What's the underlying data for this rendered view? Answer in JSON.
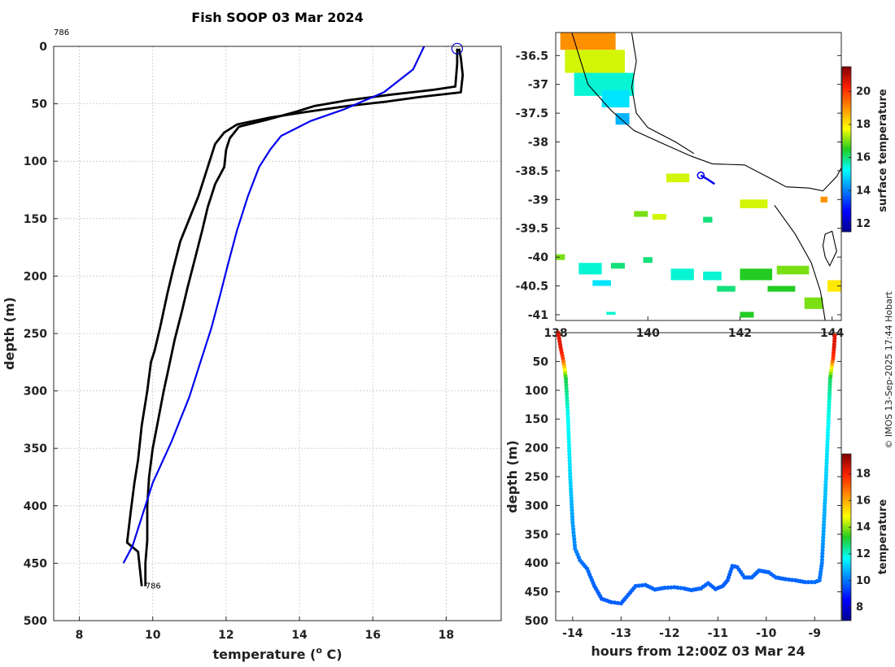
{
  "copyright": "© IMOS 13-Sep-2025 17:44 Hobart",
  "chart_data": [
    {
      "type": "line",
      "name": "temperature-depth-profile",
      "title": "Fish SOOP 03 Mar 2024",
      "xlabel_prefix": "temperature (",
      "xlabel_sup": "o",
      "xlabel_suffix": " C)",
      "ylabel": "depth (m)",
      "xlim": [
        7.3,
        19.5
      ],
      "ylim": [
        500,
        0
      ],
      "xticks": [
        8,
        10,
        12,
        14,
        16,
        18
      ],
      "yticks": [
        0,
        50,
        100,
        150,
        200,
        250,
        300,
        350,
        400,
        450,
        500
      ],
      "grid": true,
      "annotations": [
        {
          "text": "786",
          "x": 7.3,
          "y": -10
        },
        {
          "text": "786",
          "x": 9.8,
          "y": 470
        }
      ],
      "surface_marker": {
        "x": 18.3,
        "y": 2
      },
      "series": [
        {
          "name": "profile-down",
          "color": "#000000",
          "points": [
            [
              18.3,
              2
            ],
            [
              18.3,
              15
            ],
            [
              18.25,
              35
            ],
            [
              17.6,
              38
            ],
            [
              16.5,
              42
            ],
            [
              15.3,
              47
            ],
            [
              14.4,
              52
            ],
            [
              13.9,
              57
            ],
            [
              13.1,
              64
            ],
            [
              12.35,
              70
            ],
            [
              12.1,
              80
            ],
            [
              12.0,
              90
            ],
            [
              11.95,
              105
            ],
            [
              11.7,
              120
            ],
            [
              11.5,
              140
            ],
            [
              11.35,
              160
            ],
            [
              11.15,
              185
            ],
            [
              10.95,
              210
            ],
            [
              10.8,
              230
            ],
            [
              10.6,
              255
            ],
            [
              10.5,
              270
            ],
            [
              10.4,
              285
            ],
            [
              10.3,
              300
            ],
            [
              10.15,
              325
            ],
            [
              10.0,
              350
            ],
            [
              9.9,
              375
            ],
            [
              9.85,
              400
            ],
            [
              9.85,
              430
            ],
            [
              9.8,
              450
            ],
            [
              9.8,
              470
            ]
          ]
        },
        {
          "name": "profile-up",
          "color": "#000000",
          "points": [
            [
              9.7,
              470
            ],
            [
              9.6,
              440
            ],
            [
              9.3,
              432
            ],
            [
              9.4,
              405
            ],
            [
              9.5,
              380
            ],
            [
              9.6,
              360
            ],
            [
              9.7,
              330
            ],
            [
              9.85,
              300
            ],
            [
              9.95,
              275
            ],
            [
              10.05,
              265
            ],
            [
              10.2,
              245
            ],
            [
              10.4,
              215
            ],
            [
              10.55,
              195
            ],
            [
              10.75,
              170
            ],
            [
              11.0,
              150
            ],
            [
              11.25,
              130
            ],
            [
              11.45,
              110
            ],
            [
              11.6,
              95
            ],
            [
              11.7,
              85
            ],
            [
              11.95,
              75
            ],
            [
              12.3,
              68
            ],
            [
              13.2,
              62
            ],
            [
              14.2,
              57
            ],
            [
              15.3,
              52
            ],
            [
              16.4,
              48
            ],
            [
              17.3,
              44
            ],
            [
              18.4,
              40
            ],
            [
              18.45,
              25
            ],
            [
              18.4,
              10
            ],
            [
              18.35,
              2
            ]
          ]
        },
        {
          "name": "climatology",
          "color": "#0000ee",
          "points": [
            [
              17.4,
              0
            ],
            [
              17.1,
              20
            ],
            [
              16.3,
              40
            ],
            [
              15.2,
              55
            ],
            [
              14.3,
              65
            ],
            [
              13.5,
              78
            ],
            [
              13.2,
              90
            ],
            [
              12.9,
              105
            ],
            [
              12.6,
              130
            ],
            [
              12.3,
              160
            ],
            [
              12.05,
              190
            ],
            [
              11.85,
              215
            ],
            [
              11.6,
              245
            ],
            [
              11.3,
              275
            ],
            [
              11.0,
              305
            ],
            [
              10.5,
              345
            ],
            [
              10.0,
              380
            ],
            [
              9.7,
              410
            ],
            [
              9.45,
              435
            ],
            [
              9.2,
              450
            ]
          ]
        }
      ]
    },
    {
      "type": "heatmap",
      "name": "surface-temperature-map",
      "xlim": [
        138,
        144.2
      ],
      "ylim": [
        -41.1,
        -36.1
      ],
      "xticks": [
        138,
        140,
        142,
        144
      ],
      "xtick_labels": [
        "138",
        "140",
        "142",
        "144"
      ],
      "yticks": [
        -36.5,
        -37,
        -37.5,
        -38,
        -38.5,
        -39,
        -39.5,
        -40,
        -40.5,
        -41
      ],
      "ytick_labels": [
        "-36.5",
        "-37",
        "-37.5",
        "-38",
        "-38.5",
        "-39",
        "-39.5",
        "-40",
        "-40.5",
        "-41"
      ],
      "colorbar_label": "surface temperature",
      "colorbar_range": [
        11.5,
        21.5
      ],
      "colorbar_ticks": [
        12,
        14,
        16,
        18,
        20
      ],
      "vessel_position": {
        "lon": 141.15,
        "lat": -38.58
      },
      "vessel_track": [
        [
          141.15,
          -38.58
        ],
        [
          141.3,
          -38.65
        ],
        [
          141.45,
          -38.73
        ]
      ],
      "coastline": [
        [
          138.35,
          -36.1
        ],
        [
          138.7,
          -37.0
        ],
        [
          139.2,
          -37.45
        ],
        [
          139.7,
          -37.8
        ],
        [
          140.3,
          -38.02
        ],
        [
          140.95,
          -38.25
        ],
        [
          141.4,
          -38.38
        ],
        [
          142.1,
          -38.4
        ],
        [
          142.7,
          -38.65
        ],
        [
          143.0,
          -38.78
        ],
        [
          143.5,
          -38.8
        ],
        [
          143.8,
          -38.85
        ],
        [
          144.1,
          -38.6
        ],
        [
          144.2,
          -38.45
        ]
      ],
      "coastline2": [
        [
          139.65,
          -36.1
        ],
        [
          139.75,
          -36.6
        ],
        [
          139.65,
          -37.05
        ],
        [
          139.75,
          -37.5
        ],
        [
          140.0,
          -37.75
        ],
        [
          140.6,
          -38.0
        ],
        [
          141.0,
          -38.2
        ]
      ],
      "island": [
        [
          143.85,
          -39.6
        ],
        [
          144.0,
          -39.55
        ],
        [
          144.1,
          -39.9
        ],
        [
          143.95,
          -40.15
        ],
        [
          143.85,
          -40.0
        ],
        [
          143.8,
          -39.8
        ],
        [
          143.85,
          -39.6
        ]
      ],
      "island2": [
        [
          142.75,
          -39.1
        ],
        [
          143.2,
          -39.6
        ],
        [
          143.55,
          -40.1
        ],
        [
          143.75,
          -40.6
        ],
        [
          143.85,
          -41.1
        ]
      ],
      "patches": [
        {
          "lon": 138.1,
          "lat": -36.1,
          "w": 1.2,
          "h": 0.3,
          "value": 19
        },
        {
          "lon": 138.2,
          "lat": -36.4,
          "w": 1.3,
          "h": 0.4,
          "value": 17.5
        },
        {
          "lon": 138.4,
          "lat": -36.8,
          "w": 1.3,
          "h": 0.4,
          "value": 15.5
        },
        {
          "lon": 139.0,
          "lat": -37.1,
          "w": 0.6,
          "h": 0.3,
          "value": 15
        },
        {
          "lon": 139.3,
          "lat": -37.5,
          "w": 0.3,
          "h": 0.2,
          "value": 14.5
        },
        {
          "lon": 140.4,
          "lat": -38.55,
          "w": 0.5,
          "h": 0.15,
          "value": 17.5
        },
        {
          "lon": 142.0,
          "lat": -39.0,
          "w": 0.6,
          "h": 0.15,
          "value": 17.5
        },
        {
          "lon": 143.75,
          "lat": -38.95,
          "w": 0.15,
          "h": 0.1,
          "value": 19
        },
        {
          "lon": 139.7,
          "lat": -39.2,
          "w": 0.3,
          "h": 0.1,
          "value": 17
        },
        {
          "lon": 140.1,
          "lat": -39.25,
          "w": 0.3,
          "h": 0.1,
          "value": 17.5
        },
        {
          "lon": 141.2,
          "lat": -39.3,
          "w": 0.2,
          "h": 0.1,
          "value": 16
        },
        {
          "lon": 138.0,
          "lat": -39.95,
          "w": 0.2,
          "h": 0.1,
          "value": 17
        },
        {
          "lon": 138.5,
          "lat": -40.1,
          "w": 0.5,
          "h": 0.2,
          "value": 15.5
        },
        {
          "lon": 139.2,
          "lat": -40.1,
          "w": 0.3,
          "h": 0.1,
          "value": 16
        },
        {
          "lon": 139.9,
          "lat": -40.0,
          "w": 0.2,
          "h": 0.1,
          "value": 16
        },
        {
          "lon": 140.5,
          "lat": -40.2,
          "w": 0.5,
          "h": 0.2,
          "value": 15.5
        },
        {
          "lon": 141.2,
          "lat": -40.25,
          "w": 0.4,
          "h": 0.15,
          "value": 15.5
        },
        {
          "lon": 142.0,
          "lat": -40.2,
          "w": 0.7,
          "h": 0.2,
          "value": 16.5
        },
        {
          "lon": 142.8,
          "lat": -40.15,
          "w": 0.7,
          "h": 0.15,
          "value": 17
        },
        {
          "lon": 143.9,
          "lat": -40.4,
          "w": 0.3,
          "h": 0.2,
          "value": 18
        },
        {
          "lon": 138.8,
          "lat": -40.4,
          "w": 0.4,
          "h": 0.1,
          "value": 15
        },
        {
          "lon": 141.5,
          "lat": -40.5,
          "w": 0.4,
          "h": 0.1,
          "value": 16
        },
        {
          "lon": 142.6,
          "lat": -40.5,
          "w": 0.6,
          "h": 0.1,
          "value": 16.5
        },
        {
          "lon": 143.4,
          "lat": -40.7,
          "w": 0.4,
          "h": 0.2,
          "value": 17
        },
        {
          "lon": 142.0,
          "lat": -40.95,
          "w": 0.3,
          "h": 0.1,
          "value": 16.5
        },
        {
          "lon": 139.1,
          "lat": -40.95,
          "w": 0.2,
          "h": 0.05,
          "value": 15.5
        }
      ]
    },
    {
      "type": "scatter",
      "name": "depth-time-section",
      "xlabel": "hours from 12:00Z 03 Mar 24",
      "ylabel": "depth (m)",
      "xlim": [
        -14.35,
        -8.45
      ],
      "ylim": [
        500,
        0
      ],
      "xticks": [
        -14,
        -13,
        -12,
        -11,
        -10,
        -9
      ],
      "yticks": [
        50,
        100,
        150,
        200,
        250,
        300,
        350,
        400,
        450,
        500
      ],
      "colorbar_label": "temperature",
      "colorbar_range": [
        7,
        19.5
      ],
      "colorbar_ticks": [
        8,
        10,
        12,
        14,
        16,
        18
      ],
      "track": [
        [
          -14.3,
          0,
          18.3
        ],
        [
          -14.25,
          25,
          18.3
        ],
        [
          -14.2,
          45,
          17.5
        ],
        [
          -14.17,
          60,
          15.5
        ],
        [
          -14.14,
          80,
          13
        ],
        [
          -14.1,
          140,
          11.8
        ],
        [
          -14.05,
          250,
          11.2
        ],
        [
          -14.0,
          330,
          10.5
        ],
        [
          -13.95,
          375,
          10.2
        ],
        [
          -13.85,
          395,
          10.0
        ],
        [
          -13.7,
          410,
          9.9
        ],
        [
          -13.55,
          440,
          9.8
        ],
        [
          -13.4,
          462,
          9.7
        ],
        [
          -13.2,
          468,
          9.7
        ],
        [
          -13.0,
          470,
          9.7
        ],
        [
          -12.85,
          455,
          9.8
        ],
        [
          -12.7,
          440,
          9.8
        ],
        [
          -12.5,
          438,
          9.8
        ],
        [
          -12.3,
          446,
          9.8
        ],
        [
          -12.1,
          443,
          9.8
        ],
        [
          -11.9,
          442,
          9.8
        ],
        [
          -11.7,
          444,
          9.8
        ],
        [
          -11.55,
          447,
          9.8
        ],
        [
          -11.35,
          444,
          9.8
        ],
        [
          -11.2,
          435,
          9.8
        ],
        [
          -11.05,
          445,
          9.7
        ],
        [
          -10.9,
          440,
          9.7
        ],
        [
          -10.8,
          430,
          9.7
        ],
        [
          -10.7,
          405,
          9.8
        ],
        [
          -10.6,
          407,
          9.8
        ],
        [
          -10.45,
          425,
          9.8
        ],
        [
          -10.3,
          425,
          9.8
        ],
        [
          -10.15,
          413,
          9.8
        ],
        [
          -9.95,
          416,
          9.8
        ],
        [
          -9.8,
          425,
          9.8
        ],
        [
          -9.6,
          428,
          9.8
        ],
        [
          -9.4,
          430,
          9.8
        ],
        [
          -9.2,
          433,
          9.8
        ],
        [
          -9.0,
          433,
          9.9
        ],
        [
          -8.9,
          430,
          10.0
        ],
        [
          -8.85,
          400,
          10.1
        ],
        [
          -8.82,
          350,
          10.5
        ],
        [
          -8.78,
          280,
          10.9
        ],
        [
          -8.74,
          200,
          11.4
        ],
        [
          -8.7,
          120,
          12.0
        ],
        [
          -8.68,
          80,
          12.8
        ],
        [
          -8.65,
          60,
          15
        ],
        [
          -8.62,
          45,
          17.5
        ],
        [
          -8.6,
          25,
          18.3
        ],
        [
          -8.58,
          0,
          18.3
        ]
      ]
    }
  ]
}
